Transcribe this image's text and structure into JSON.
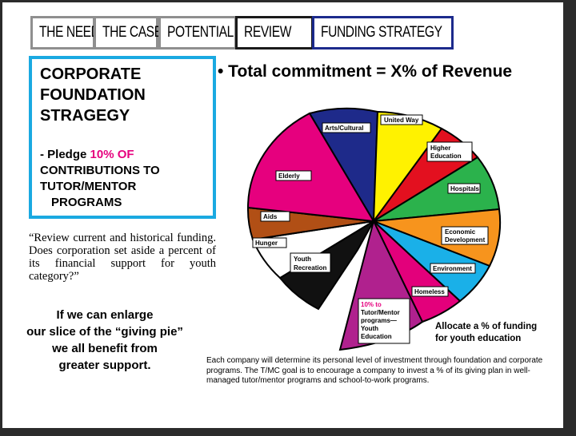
{
  "tabs": [
    {
      "label": "THE NEED"
    },
    {
      "label": "THE CASE"
    },
    {
      "label": "POTENTIAL"
    },
    {
      "label": "REVIEW"
    },
    {
      "label": "FUNDING STRATEGY"
    }
  ],
  "strategy": {
    "title": "CORPORATE\nFOUNDATION\nSTRAGEGY",
    "pledge_prefix": "- Pledge ",
    "pledge_highlight": "10% OF",
    "pledge_line2": "CONTRIBUTIONS TO",
    "pledge_line3": "TUTOR/MENTOR",
    "pledge_line4": "PROGRAMS",
    "highlight_color": "#e6007e",
    "border_color": "#1aa9e1"
  },
  "quote": "“Review current and historical funding. Does corporation set aside a percent of its financial support for youth category?”",
  "enlarge": [
    "If we can enlarge",
    "our slice of the “giving pie”",
    "we all benefit from",
    "greater support."
  ],
  "headline": "• Total commitment = X% of Revenue",
  "pie_labels": {
    "arts": "Arts/Cultural",
    "united_way": "United Way",
    "higher_ed_1": "Higher",
    "higher_ed_2": "Education",
    "hospitals": "Hospitals",
    "econ_1": "Economic",
    "econ_2": "Development",
    "environment": "Environment",
    "homeless": "Homeless",
    "tutor_1": "10% to",
    "tutor_2": "Tutor/Mentor",
    "tutor_3": "programs—",
    "tutor_4": "Youth",
    "tutor_5": "Education",
    "youth_rec_1": "Youth",
    "youth_rec_2": "Recreation",
    "hunger": "Hunger",
    "aids": "Aids",
    "elderly": "Elderly"
  },
  "slice_colors": {
    "arts": "#1e2a8a",
    "united_way": "#fff200",
    "higher_ed": "#e3101f",
    "hospitals": "#2bb24c",
    "econ": "#f7941d",
    "environment": "#1ab0e8",
    "homeless": "#e3007b",
    "tutor": "#b0218e",
    "youth_rec": "#111111",
    "hunger": "#ffffff",
    "aids": "#b14f15",
    "elderly": "#e6007e"
  },
  "allocate": [
    "Allocate a % of funding",
    "for youth education"
  ],
  "footer": "Each company will determine its personal level of investment through foundation and corporate programs. The T/MC goal is to encourage a company to invest a % of its giving plan in well-managed tutor/mentor programs and school-to-work programs."
}
